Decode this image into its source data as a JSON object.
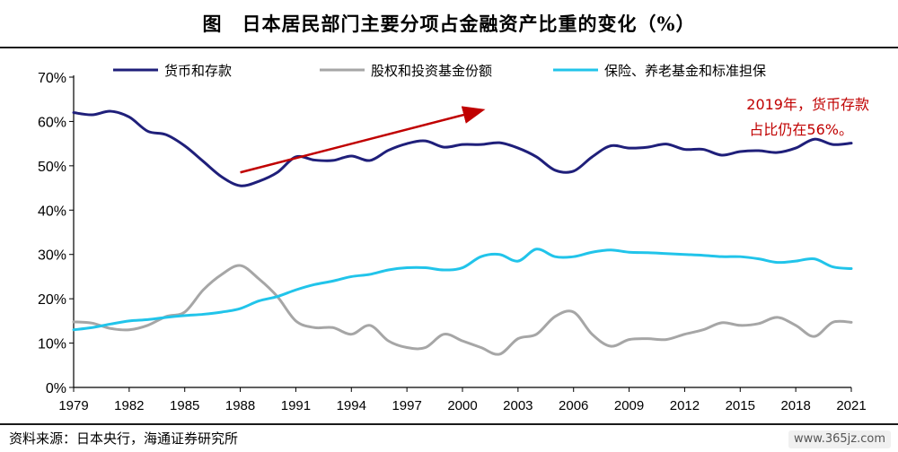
{
  "title": "图　日本居民部门主要分项占金融资产比重的变化（%）",
  "source": "资料来源：日本央行，海通证券研究所",
  "watermark": "www.365jz.com",
  "chart_data": {
    "type": "line",
    "ylim": [
      0,
      70
    ],
    "yticks": [
      0,
      10,
      20,
      30,
      40,
      50,
      60,
      70
    ],
    "ytick_labels": [
      "0%",
      "10%",
      "20%",
      "30%",
      "40%",
      "50%",
      "60%",
      "70%"
    ],
    "xlim": [
      1979,
      2021
    ],
    "xticks": [
      1979,
      1982,
      1985,
      1988,
      1991,
      1994,
      1997,
      2000,
      2003,
      2006,
      2009,
      2012,
      2015,
      2018,
      2021
    ],
    "legend_position": "top",
    "grid": false,
    "x": [
      1979,
      1980,
      1981,
      1982,
      1983,
      1984,
      1985,
      1986,
      1987,
      1988,
      1989,
      1990,
      1991,
      1992,
      1993,
      1994,
      1995,
      1996,
      1997,
      1998,
      1999,
      2000,
      2001,
      2002,
      2003,
      2004,
      2005,
      2006,
      2007,
      2008,
      2009,
      2010,
      2011,
      2012,
      2013,
      2014,
      2015,
      2016,
      2017,
      2018,
      2019,
      2020,
      2021
    ],
    "series": [
      {
        "name": "货币和存款",
        "color": "#1f1f7a",
        "values": [
          62,
          61.5,
          62.3,
          61,
          57.8,
          57,
          54.5,
          51,
          47.5,
          45.5,
          46.5,
          48.5,
          52,
          51.3,
          51.2,
          52.2,
          51.2,
          53.5,
          55,
          55.6,
          54.2,
          54.8,
          54.8,
          55.2,
          54,
          52,
          49,
          48.8,
          52,
          54.5,
          54,
          54.2,
          54.9,
          53.7,
          53.7,
          52.4,
          53.2,
          53.4,
          53,
          54,
          56,
          54.8,
          55.1
        ]
      },
      {
        "name": "股权和投资基金份额",
        "color": "#a6a6a6",
        "values": [
          14.8,
          14.5,
          13.3,
          13,
          14,
          16,
          17,
          22,
          25.5,
          27.5,
          24.5,
          20.5,
          15,
          13.5,
          13.5,
          12,
          14,
          10.5,
          9,
          9,
          12,
          10.5,
          9,
          7.5,
          11,
          12,
          16,
          17,
          12,
          9.3,
          10.8,
          11,
          10.8,
          12,
          13,
          14.6,
          14,
          14.4,
          15.8,
          14,
          11.5,
          14.7,
          14.7
        ]
      },
      {
        "name": "保险、养老基金和标准担保",
        "color": "#21c4ea",
        "values": [
          13,
          13.5,
          14.3,
          15,
          15.3,
          15.8,
          16.2,
          16.5,
          17,
          17.8,
          19.5,
          20.5,
          22,
          23.2,
          24,
          25,
          25.5,
          26.5,
          27,
          27,
          26.5,
          27,
          29.5,
          30,
          28.5,
          31.2,
          29.5,
          29.5,
          30.5,
          31,
          30.5,
          30.4,
          30.2,
          30,
          29.8,
          29.5,
          29.5,
          29,
          28.2,
          28.5,
          29,
          27.2,
          26.8
        ]
      }
    ],
    "annotation": {
      "line1": "2019年，货币存款",
      "line2": "占比仍在56%。",
      "color": "#c00000"
    },
    "arrow": {
      "from": [
        1988,
        48.5
      ],
      "to": [
        2001,
        62.5
      ],
      "color": "#c00000"
    }
  }
}
